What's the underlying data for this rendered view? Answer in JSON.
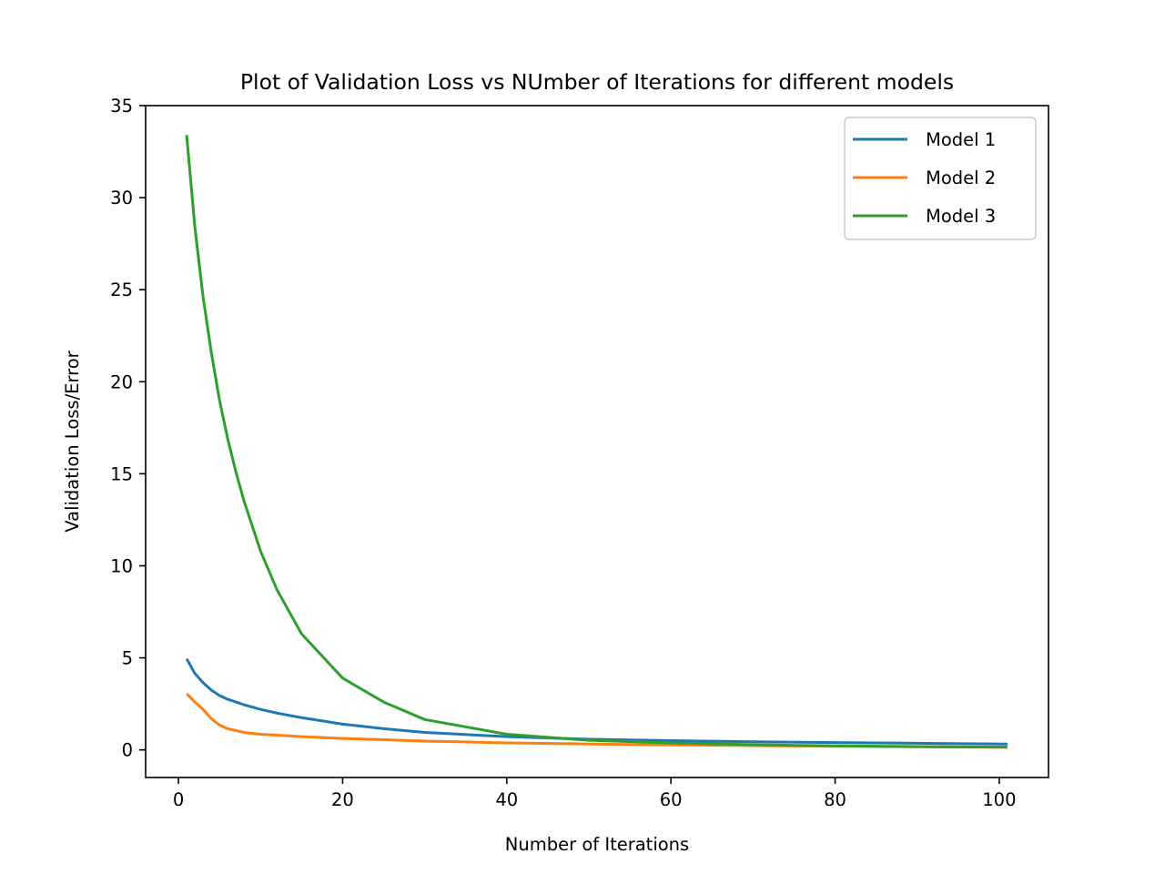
{
  "chart_data": {
    "type": "line",
    "title": "Plot of Validation Loss vs NUmber of Iterations for different models",
    "xlabel": "Number of Iterations",
    "ylabel": "Validation Loss/Error",
    "xlim": [
      -4.0,
      106.0
    ],
    "ylim": [
      -1.5,
      35
    ],
    "xticks": [
      0,
      20,
      40,
      60,
      80,
      100
    ],
    "yticks": [
      0,
      5,
      10,
      15,
      20,
      25,
      30,
      35
    ],
    "grid": false,
    "legend_position": "top-right",
    "x": [
      1,
      2,
      3,
      4,
      5,
      6,
      7,
      8,
      10,
      12,
      15,
      20,
      25,
      30,
      40,
      50,
      60,
      70,
      80,
      90,
      101
    ],
    "series": [
      {
        "name": "Model 1",
        "color": "#1f77b4",
        "values": [
          4.95,
          4.15,
          3.65,
          3.25,
          2.95,
          2.75,
          2.6,
          2.45,
          2.2,
          2.0,
          1.75,
          1.4,
          1.15,
          0.95,
          0.72,
          0.58,
          0.5,
          0.44,
          0.4,
          0.36,
          0.32
        ]
      },
      {
        "name": "Model 2",
        "color": "#ff7f0e",
        "values": [
          3.05,
          2.6,
          2.2,
          1.7,
          1.35,
          1.15,
          1.05,
          0.95,
          0.85,
          0.8,
          0.72,
          0.62,
          0.55,
          0.48,
          0.38,
          0.32,
          0.27,
          0.23,
          0.2,
          0.17,
          0.14
        ]
      },
      {
        "name": "Model 3",
        "color": "#2ca02c",
        "values": [
          33.4,
          28.4,
          24.6,
          21.6,
          19.0,
          16.9,
          15.1,
          13.5,
          10.8,
          8.7,
          6.3,
          3.9,
          2.6,
          1.65,
          0.85,
          0.52,
          0.38,
          0.28,
          0.22,
          0.18,
          0.15
        ]
      }
    ]
  }
}
